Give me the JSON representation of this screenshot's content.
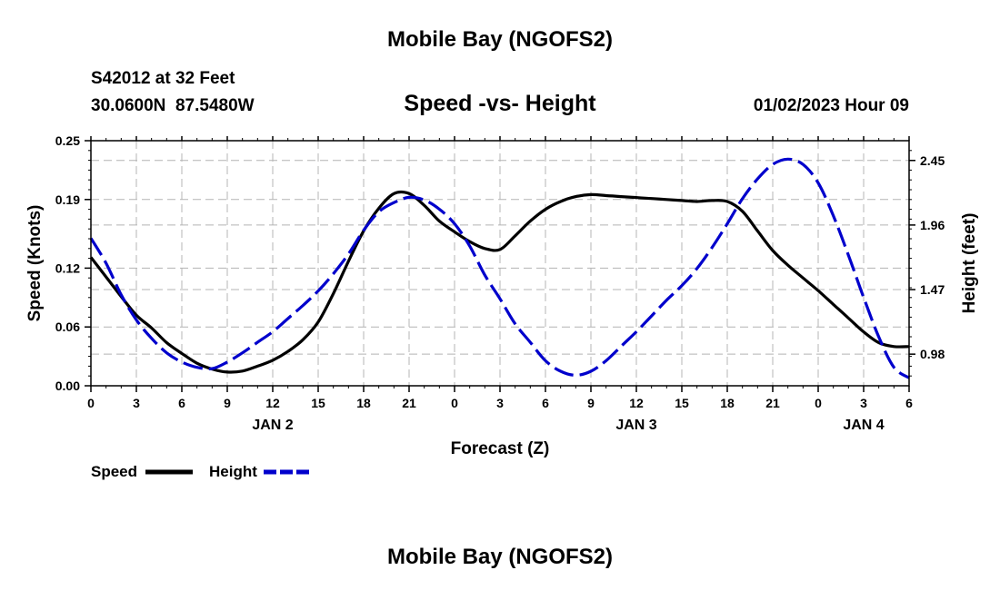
{
  "header": {
    "title_top": "Mobile Bay (NGOFS2)",
    "station_line": "S42012 at 32 Feet",
    "coords_line": "30.0600N  87.5480W",
    "subtitle": "Speed -vs- Height",
    "datetime": "01/02/2023 Hour 09",
    "title_bottom": "Mobile Bay (NGOFS2)"
  },
  "colors": {
    "speed": "#000000",
    "height": "#0000cc",
    "grid": "#b4b4b4",
    "background": "#ffffff"
  },
  "chart_data": {
    "type": "line",
    "xlabel": "Forecast (Z)",
    "ylabel_left": "Speed (Knots)",
    "ylabel_right": "Height (feet)",
    "xlim": [
      0,
      54
    ],
    "ylim_left": [
      0,
      0.25
    ],
    "ylim_right": [
      0.74,
      2.6
    ],
    "grid": true,
    "x_ticks": [
      0,
      3,
      6,
      9,
      12,
      15,
      18,
      21,
      24,
      27,
      30,
      33,
      36,
      39,
      42,
      45,
      48,
      51,
      54
    ],
    "x_tick_labels": [
      "0",
      "3",
      "6",
      "9",
      "12",
      "15",
      "18",
      "21",
      "0",
      "3",
      "6",
      "9",
      "12",
      "15",
      "18",
      "21",
      "0",
      "3",
      "6"
    ],
    "date_labels": [
      {
        "x": 12,
        "label": "JAN 2"
      },
      {
        "x": 36,
        "label": "JAN 3"
      },
      {
        "x": 51,
        "label": "JAN 4"
      }
    ],
    "y_left_ticks": [
      0.0,
      0.06,
      0.12,
      0.19,
      0.25
    ],
    "y_left_tick_labels": [
      "0.00",
      "0.06",
      "0.12",
      "0.19",
      "0.25"
    ],
    "y_right_ticks": [
      0.98,
      1.47,
      1.96,
      2.45
    ],
    "y_right_tick_labels": [
      "0.98",
      "1.47",
      "1.96",
      "2.45"
    ],
    "legend_placement": "bottom-left",
    "series": [
      {
        "name": "Speed",
        "axis": "left",
        "style": "solid",
        "x": [
          0,
          1,
          2,
          3,
          4,
          5,
          6,
          7,
          8,
          9,
          10,
          11,
          12,
          13,
          14,
          15,
          16,
          17,
          18,
          19,
          20,
          21,
          22,
          23,
          24,
          25,
          26,
          27,
          28,
          29,
          30,
          31,
          32,
          33,
          34,
          35,
          36,
          37,
          38,
          39,
          40,
          41,
          42,
          43,
          44,
          45,
          46,
          47,
          48,
          49,
          50,
          51,
          52,
          53,
          54
        ],
        "values": [
          0.131,
          0.111,
          0.091,
          0.072,
          0.059,
          0.044,
          0.033,
          0.023,
          0.017,
          0.014,
          0.015,
          0.02,
          0.026,
          0.035,
          0.047,
          0.065,
          0.094,
          0.127,
          0.158,
          0.181,
          0.196,
          0.196,
          0.184,
          0.168,
          0.157,
          0.147,
          0.14,
          0.139,
          0.153,
          0.168,
          0.18,
          0.188,
          0.193,
          0.195,
          0.194,
          0.193,
          0.192,
          0.191,
          0.19,
          0.189,
          0.188,
          0.189,
          0.188,
          0.178,
          0.158,
          0.138,
          0.123,
          0.11,
          0.097,
          0.083,
          0.069,
          0.055,
          0.044,
          0.04,
          0.04
        ]
      },
      {
        "name": "Height",
        "axis": "right",
        "style": "dashed",
        "x": [
          0,
          1,
          2,
          3,
          4,
          5,
          6,
          7,
          8,
          9,
          10,
          11,
          12,
          13,
          14,
          15,
          16,
          17,
          18,
          19,
          20,
          21,
          22,
          23,
          24,
          25,
          26,
          27,
          28,
          29,
          30,
          31,
          32,
          33,
          34,
          35,
          36,
          37,
          38,
          39,
          40,
          41,
          42,
          43,
          44,
          45,
          46,
          47,
          48,
          49,
          50,
          51,
          52,
          53,
          54
        ],
        "values": [
          1.86,
          1.67,
          1.43,
          1.24,
          1.1,
          0.99,
          0.92,
          0.88,
          0.87,
          0.92,
          0.99,
          1.07,
          1.15,
          1.25,
          1.35,
          1.46,
          1.59,
          1.74,
          1.92,
          2.06,
          2.13,
          2.17,
          2.15,
          2.08,
          1.97,
          1.8,
          1.58,
          1.4,
          1.21,
          1.07,
          0.93,
          0.85,
          0.82,
          0.85,
          0.93,
          1.04,
          1.15,
          1.27,
          1.39,
          1.5,
          1.63,
          1.79,
          1.97,
          2.16,
          2.31,
          2.42,
          2.46,
          2.42,
          2.28,
          2.03,
          1.73,
          1.41,
          1.11,
          0.88,
          0.8
        ]
      }
    ]
  }
}
